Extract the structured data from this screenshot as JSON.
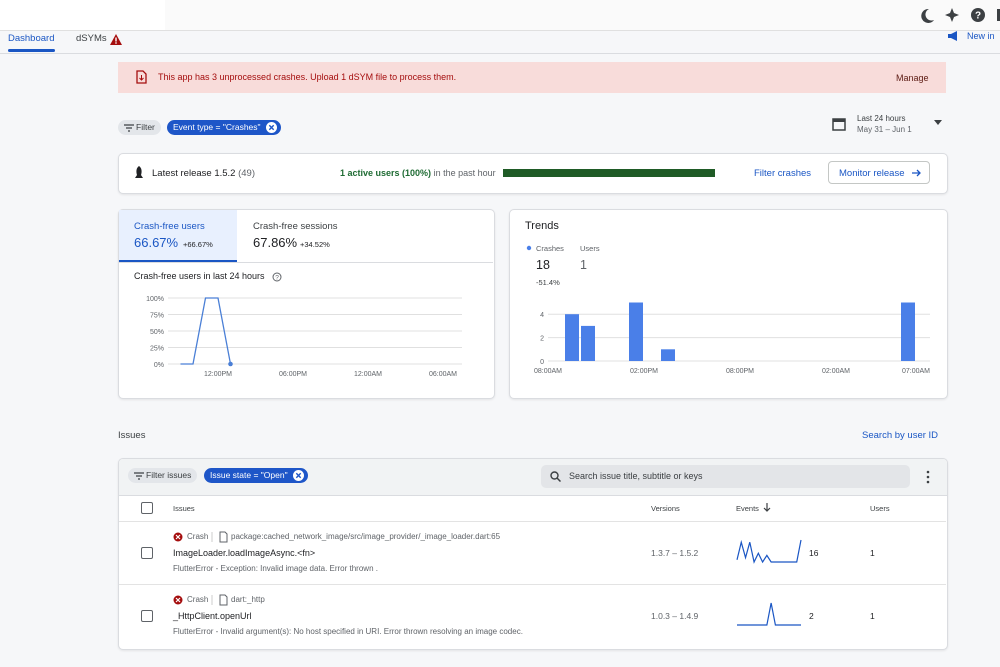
{
  "tabs": {
    "dashboard": "Dashboard",
    "dsyms": "dSYMs",
    "new_in": "New in"
  },
  "banner": {
    "text": "This app has 3 unprocessed crashes. Upload 1 dSYM file to process them.",
    "action": "Manage"
  },
  "filter": {
    "label": "Filter",
    "chip": "Event type = \"Crashes\""
  },
  "date_range": {
    "title": "Last 24 hours",
    "range": "May 31 – Jun 1"
  },
  "release": {
    "label": "Latest release 1.5.2",
    "build": "(49)",
    "active_users": "1 active users (100%)",
    "active_suffix": "in the past hour",
    "active_share": 100,
    "filter_crashes": "Filter crashes",
    "monitor": "Monitor release"
  },
  "crash_free": {
    "tabs": [
      {
        "label": "Crash-free users",
        "value": "66.67%",
        "delta": "+66.67%"
      },
      {
        "label": "Crash-free sessions",
        "value": "67.86%",
        "delta": "+34.52%"
      }
    ],
    "chart_title": "Crash-free users in last 24 hours",
    "chart": {
      "type": "line",
      "ylim": [
        0,
        100
      ],
      "yticks": [
        {
          "value": 0,
          "label": "0%"
        },
        {
          "value": 25,
          "label": "25%"
        },
        {
          "value": 50,
          "label": "50%"
        },
        {
          "value": 75,
          "label": "75%"
        },
        {
          "value": 100,
          "label": "100%"
        }
      ],
      "xlim": [
        -4,
        20
      ],
      "xticks": [
        {
          "value": 0,
          "label": "12:00PM"
        },
        {
          "value": 6,
          "label": "06:00PM"
        },
        {
          "value": 12,
          "label": "12:00AM"
        },
        {
          "value": 18,
          "label": "06:00AM"
        }
      ],
      "x": [
        -3,
        -2,
        -1,
        0,
        1
      ],
      "values": [
        0,
        0,
        100,
        100,
        0
      ],
      "color": "#4a7fd6",
      "grid": true
    }
  },
  "trends": {
    "title": "Trends",
    "legend": [
      {
        "name": "Crashes",
        "value": 18,
        "delta": "-51.4%"
      },
      {
        "name": "Users",
        "value": 1
      }
    ],
    "chart": {
      "type": "bar",
      "ylim": [
        0,
        5
      ],
      "yticks": [
        0,
        2,
        4
      ],
      "xlim": [
        0,
        23.5
      ],
      "xticks": [
        {
          "value": 0,
          "label": "08:00AM"
        },
        {
          "value": 6,
          "label": "02:00PM"
        },
        {
          "value": 12,
          "label": "08:00PM"
        },
        {
          "value": 18,
          "label": "02:00AM"
        },
        {
          "value": 23,
          "label": "07:00AM"
        }
      ],
      "x": [
        1,
        2,
        5,
        7,
        22
      ],
      "values": [
        4,
        3,
        5,
        1,
        5
      ],
      "color": "#4a7fe8",
      "grid": true
    }
  },
  "issues": {
    "heading": "Issues",
    "search_user": "Search by user ID",
    "filter": "Filter issues",
    "chip": "Issue state = \"Open\"",
    "search_placeholder": "Search issue title, subtitle or keys",
    "columns": [
      "Issues",
      "Versions",
      "Events",
      "Users"
    ],
    "rows": [
      {
        "type": "Crash",
        "file": "package:cached_network_image/src/image_provider/_image_loader.dart:65",
        "title": "ImageLoader.loadImageAsync.<fn>",
        "subtitle": "FlutterError - Exception: Invalid image data. Error thrown .",
        "versions": "1.3.7 – 1.5.2",
        "events": 16,
        "users": 1,
        "sparkline": [
          1,
          9,
          2,
          9,
          0,
          4,
          0,
          3,
          0,
          0,
          0,
          0,
          0,
          0,
          0,
          10
        ]
      },
      {
        "type": "Crash",
        "file": "dart:_http",
        "title": "_HttpClient.openUrl",
        "subtitle": "FlutterError - Invalid argument(s): No host specified in URI. Error thrown resolving an image codec.",
        "versions": "1.0.3 – 1.4.9",
        "events": 2,
        "users": 1,
        "sparkline": [
          0,
          0,
          0,
          0,
          0,
          0,
          0,
          0,
          5,
          0,
          0,
          0,
          0,
          0,
          0,
          0
        ]
      }
    ]
  }
}
